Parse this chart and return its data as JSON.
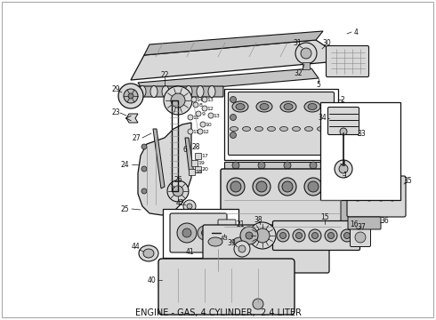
{
  "title": "ENGINE - GAS, 4 CYLINDER,  2.4 LITER",
  "caption_fontsize": 7.0,
  "bg_color": "#ffffff",
  "line_color": "#111111",
  "fig_width": 4.9,
  "fig_height": 3.6,
  "dpi": 100,
  "gray_light": "#d8d8d8",
  "gray_mid": "#b8b8b8",
  "gray_dark": "#888888",
  "white": "#ffffff"
}
